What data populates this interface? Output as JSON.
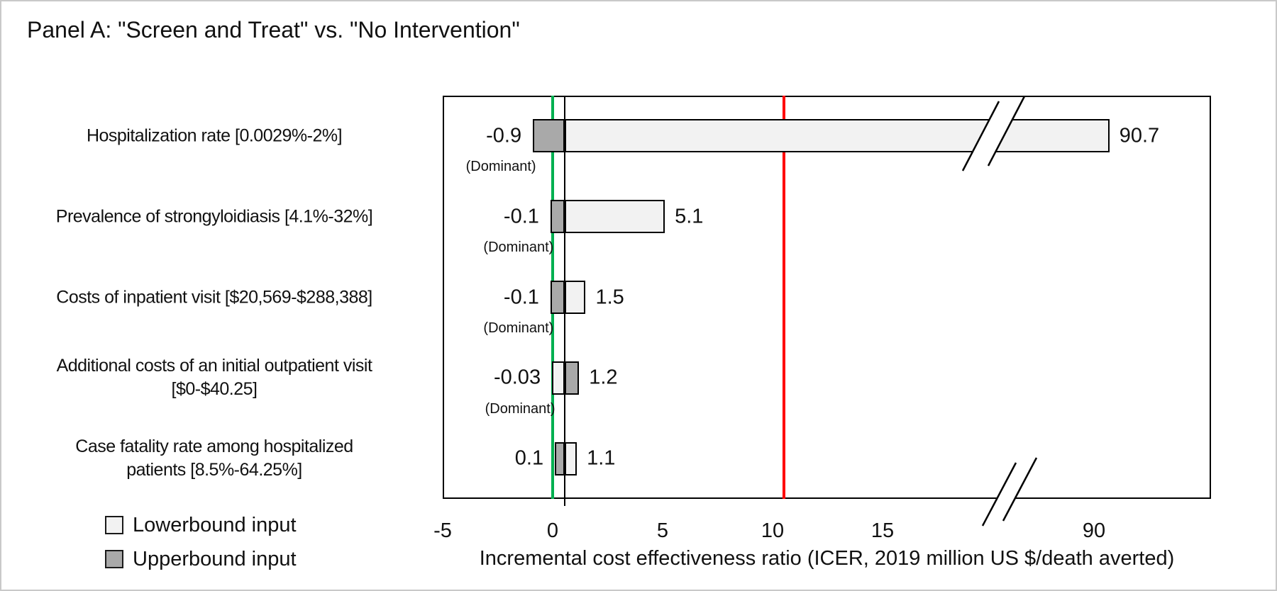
{
  "figure": {
    "title": "Panel A: \"Screen and Treat\" vs. \"No Intervention\""
  },
  "colors": {
    "lowerbound_fill": "#f2f2f2",
    "upperbound_fill": "#a9a9a9",
    "bar_border": "#000000",
    "zero_line_green": "#00b050",
    "threshold_line_red": "#ff0000",
    "base_case_line_black": "#000000"
  },
  "legend": {
    "items": [
      {
        "label": "Lowerbound input",
        "bound": "lower"
      },
      {
        "label": "Upperbound input",
        "bound": "upper"
      }
    ]
  },
  "chart_data": {
    "type": "bar",
    "subtype": "tornado",
    "orientation": "horizontal",
    "title": "Panel A: \"Screen and Treat\" vs. \"No Intervention\"",
    "xlabel": "Incremental cost effectiveness ratio (ICER, 2019 million US $/death averted)",
    "dominant_label": "(Dominant)",
    "x_axis": {
      "linear_ticks": [
        "-5",
        "0",
        "5",
        "10",
        "15"
      ],
      "post_break_tick": "90",
      "axis_break": true,
      "xlim_linear": [
        -5,
        17.5
      ]
    },
    "base_case_pivot": 0.55,
    "reference_lines": [
      {
        "name": "zero-icer-line",
        "value": 0,
        "color_key": "zero_line_green"
      },
      {
        "name": "base-case-line",
        "value": 0.55,
        "color_key": "base_case_line_black"
      },
      {
        "name": "threshold-line",
        "value": 10.6,
        "color_key": "threshold_line_red"
      }
    ],
    "rows": [
      {
        "label": "Hospitalization rate [0.0029%-2%]",
        "left": {
          "value": -0.9,
          "text": "-0.9",
          "bound": "upper",
          "dominant": true
        },
        "right": {
          "value": 90.7,
          "text": "90.7",
          "bound": "lower",
          "beyond_break": true
        }
      },
      {
        "label": "Prevalence of strongyloidiasis [4.1%-32%]",
        "left": {
          "value": -0.1,
          "text": "-0.1",
          "bound": "upper",
          "dominant": true
        },
        "right": {
          "value": 5.1,
          "text": "5.1",
          "bound": "lower",
          "beyond_break": false
        }
      },
      {
        "label": "Costs of inpatient visit [$20,569-$288,388]",
        "left": {
          "value": -0.1,
          "text": "-0.1",
          "bound": "upper",
          "dominant": true
        },
        "right": {
          "value": 1.5,
          "text": "1.5",
          "bound": "lower",
          "beyond_break": false
        }
      },
      {
        "label": "Additional costs of an initial outpatient visit\n[$0-$40.25]",
        "left": {
          "value": -0.03,
          "text": "-0.03",
          "bound": "lower",
          "dominant": true
        },
        "right": {
          "value": 1.2,
          "text": "1.2",
          "bound": "upper",
          "beyond_break": false
        }
      },
      {
        "label": "Case fatality rate among hospitalized\npatients [8.5%-64.25%]",
        "left": {
          "value": 0.1,
          "text": "0.1",
          "bound": "upper",
          "dominant": false
        },
        "right": {
          "value": 1.1,
          "text": "1.1",
          "bound": "lower",
          "beyond_break": false
        }
      }
    ]
  }
}
